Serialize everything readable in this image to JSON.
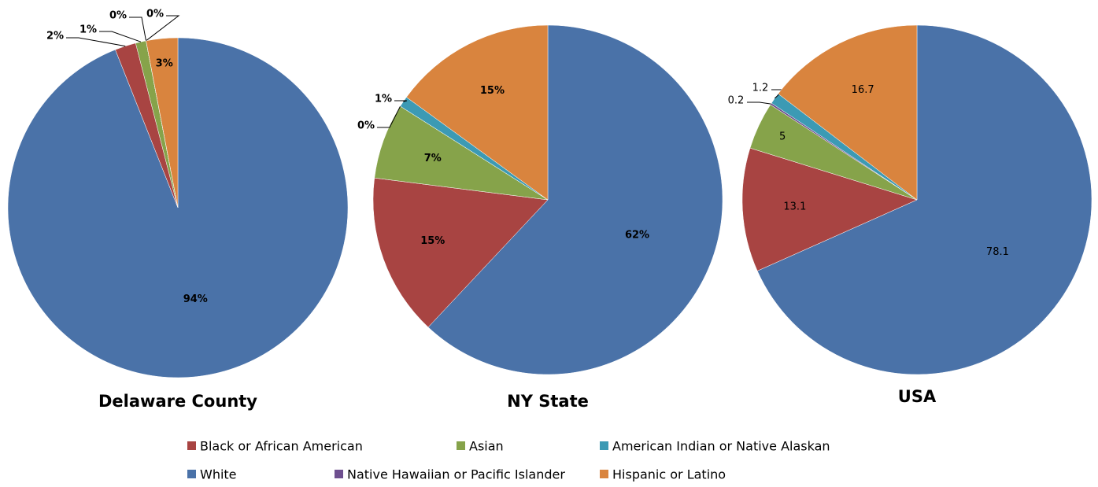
{
  "chart_data": [
    {
      "type": "pie",
      "title": "Delaware County",
      "categories": [
        "White",
        "Black or African American",
        "Asian",
        "Native Hawaiian or Pacific  Islander",
        "American Indian or Native Alaskan",
        "Hispanic or Latino"
      ],
      "values": [
        94,
        2,
        1,
        0,
        0,
        3
      ],
      "value_labels": [
        "94%",
        "2%",
        "1%",
        "0%",
        "0%",
        "3%"
      ],
      "colors": [
        "#4a72a8",
        "#a84442",
        "#86a34a",
        "#6e4f8f",
        "#3c9ab4",
        "#d9843e"
      ]
    },
    {
      "type": "pie",
      "title": "NY State",
      "categories": [
        "White",
        "Black or African American",
        "Asian",
        "Native Hawaiian or Pacific  Islander",
        "American Indian or Native Alaskan",
        "Hispanic or Latino"
      ],
      "values": [
        62,
        15,
        7,
        0,
        1,
        15
      ],
      "value_labels": [
        "62%",
        "15%",
        "7%",
        "0%",
        "1%",
        "15%"
      ],
      "colors": [
        "#4a72a8",
        "#a84442",
        "#86a34a",
        "#6e4f8f",
        "#3c9ab4",
        "#d9843e"
      ]
    },
    {
      "type": "pie",
      "title": "USA",
      "categories": [
        "White",
        "Black or African American",
        "Asian",
        "Native Hawaiian or Pacific  Islander",
        "American Indian or Native Alaskan",
        "Hispanic or Latino"
      ],
      "values": [
        78.1,
        13.1,
        5,
        0.2,
        1.2,
        16.7
      ],
      "colors": [
        "#4a72a8",
        "#a84442",
        "#86a34a",
        "#6e4f8f",
        "#3c9ab4",
        "#d9843e"
      ]
    }
  ]
}
